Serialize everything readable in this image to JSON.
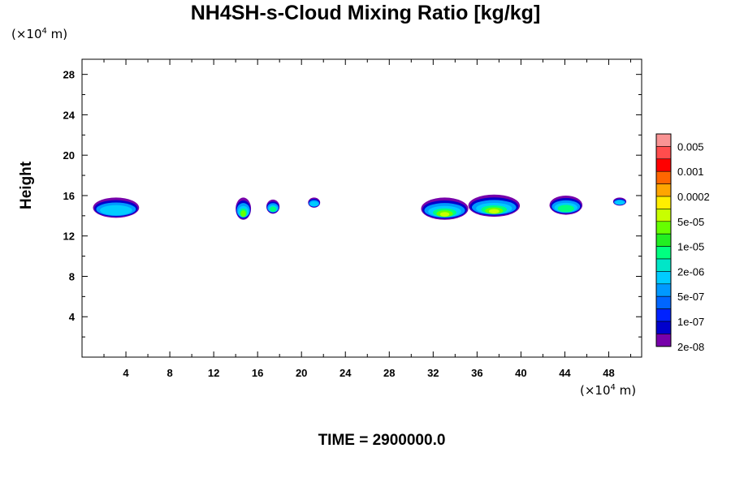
{
  "title": "NH4SH-s-Cloud Mixing Ratio [kg/kg]",
  "ylabel": "Height",
  "y_unit": {
    "prefix": "(×10",
    "exp": "4",
    "suffix": " m)"
  },
  "x_unit": {
    "prefix": "(×10",
    "exp": "4",
    "suffix": " m)"
  },
  "time_label": "TIME = 2900000.0",
  "chart_data": {
    "type": "heatmap",
    "title": "NH4SH-s-Cloud Mixing Ratio [kg/kg]",
    "xlabel": "",
    "ylabel": "Height",
    "xlim": [
      0,
      51
    ],
    "ylim": [
      0,
      29.5
    ],
    "x_ticks": [
      4,
      8,
      12,
      16,
      20,
      24,
      28,
      32,
      36,
      40,
      44,
      48
    ],
    "y_ticks": [
      4,
      8,
      12,
      16,
      20,
      24,
      28
    ],
    "legend": {
      "placement": "right",
      "labeled_levels": [
        "0.005",
        "0.001",
        "0.0002",
        "5e-05",
        "1e-05",
        "2e-06",
        "5e-07",
        "1e-07",
        "2e-08"
      ],
      "colors": [
        "#f99393",
        "#ff4d4d",
        "#ff0000",
        "#ff6600",
        "#ffa500",
        "#ffee00",
        "#c8ff00",
        "#66ff00",
        "#22ee22",
        "#00ff80",
        "#00e6c8",
        "#00ccff",
        "#0099ff",
        "#0066ff",
        "#0022ff",
        "#0000cc",
        "#7700aa"
      ]
    },
    "cloud_blobs": [
      {
        "x_range": [
          1.0,
          5.2
        ],
        "z_range": [
          13.8,
          15.8
        ],
        "max_level": "5e-07"
      },
      {
        "x_range": [
          14.0,
          15.4
        ],
        "z_range": [
          13.6,
          15.8
        ],
        "max_level": "1e-05"
      },
      {
        "x_range": [
          16.8,
          18.0
        ],
        "z_range": [
          14.2,
          15.6
        ],
        "max_level": "2e-06"
      },
      {
        "x_range": [
          20.6,
          21.7
        ],
        "z_range": [
          14.8,
          15.8
        ],
        "max_level": "5e-07"
      },
      {
        "x_range": [
          30.9,
          35.2
        ],
        "z_range": [
          13.6,
          15.8
        ],
        "max_level": "5e-05"
      },
      {
        "x_range": [
          35.2,
          39.9
        ],
        "z_range": [
          13.9,
          16.1
        ],
        "max_level": "5e-05"
      },
      {
        "x_range": [
          42.6,
          45.6
        ],
        "z_range": [
          14.1,
          16.0
        ],
        "max_level": "2e-06"
      },
      {
        "x_range": [
          48.4,
          49.6
        ],
        "z_range": [
          15.0,
          15.8
        ],
        "max_level": "5e-07"
      }
    ]
  }
}
